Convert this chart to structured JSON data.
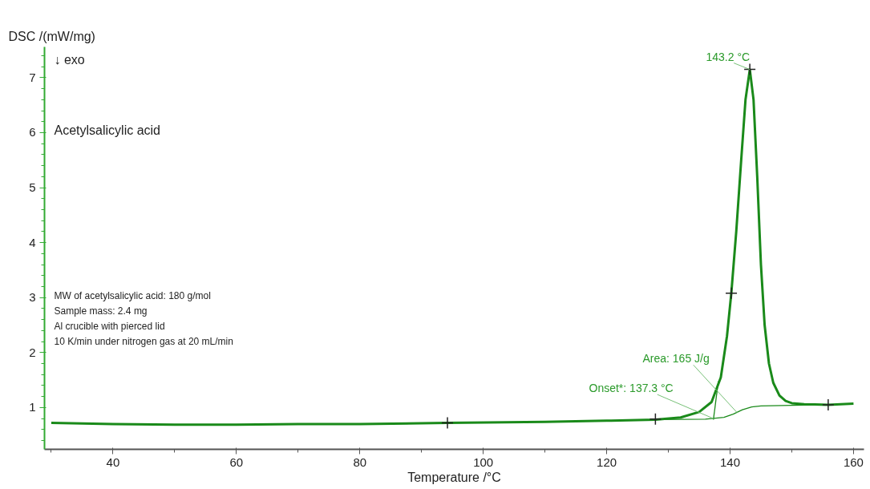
{
  "chart_data": {
    "type": "line",
    "ylabel": "DSC /(mW/mg)",
    "xlabel": "Temperature /°C",
    "x": [
      30,
      40,
      50,
      60,
      70,
      80,
      94.2,
      110,
      120,
      127.9,
      132,
      135,
      137,
      138.5,
      139.5,
      140.2,
      141,
      141.8,
      142.5,
      143.2,
      143.8,
      144.4,
      145,
      145.6,
      146.3,
      147,
      148,
      149,
      150,
      152,
      155.9,
      160
    ],
    "series": [
      {
        "color": "#1a8a1a",
        "values": [
          0.72,
          0.7,
          0.69,
          0.69,
          0.7,
          0.7,
          0.72,
          0.74,
          0.76,
          0.78,
          0.82,
          0.92,
          1.1,
          1.55,
          2.3,
          3.08,
          4.2,
          5.5,
          6.6,
          7.15,
          6.6,
          5.2,
          3.6,
          2.5,
          1.8,
          1.45,
          1.22,
          1.12,
          1.08,
          1.06,
          1.05,
          1.07
        ]
      },
      {
        "color": "#1a8a1a",
        "x": [
          127.9,
          136,
          139,
          140.5,
          142,
          143.5,
          145,
          150,
          155.9
        ],
        "values": [
          0.78,
          0.79,
          0.82,
          0.88,
          0.96,
          1.01,
          1.03,
          1.04,
          1.05
        ]
      },
      {
        "color": "#1a8a1a",
        "x": [
          137.3,
          138.1
        ],
        "values": [
          0.78,
          1.48
        ]
      },
      {
        "type": "scatter",
        "marker": "cross",
        "color": "#222222",
        "x": [
          94.2,
          127.9,
          140.2,
          143.2,
          155.9
        ],
        "values": [
          0.72,
          0.79,
          3.08,
          7.15,
          1.05
        ]
      }
    ],
    "xlim": [
      28.9,
      161.7
    ],
    "ylim": [
      0.24,
      7.56
    ],
    "xticks": [
      40,
      60,
      80,
      100,
      120,
      140,
      160
    ],
    "yticks": [
      1,
      2,
      3,
      4,
      5,
      6,
      7
    ],
    "grid": false,
    "annotations": [
      {
        "text": "143.2 °C",
        "x": 143.2,
        "y": 7.15
      },
      {
        "text": "Area: 165 J/g",
        "x": 141.2,
        "y": 0.9
      },
      {
        "text": "Onset*: 137.3 °C",
        "x": 137.3,
        "y": 0.8
      },
      "↓ exo",
      "Acetylsalicylic acid",
      "MW of acetylsalicylic acid: 180 g/mol",
      "Sample mass: 2.4 mg",
      "Al crucible with pierced lid",
      "10 K/min under nitrogen gas at 20 mL/min"
    ]
  }
}
